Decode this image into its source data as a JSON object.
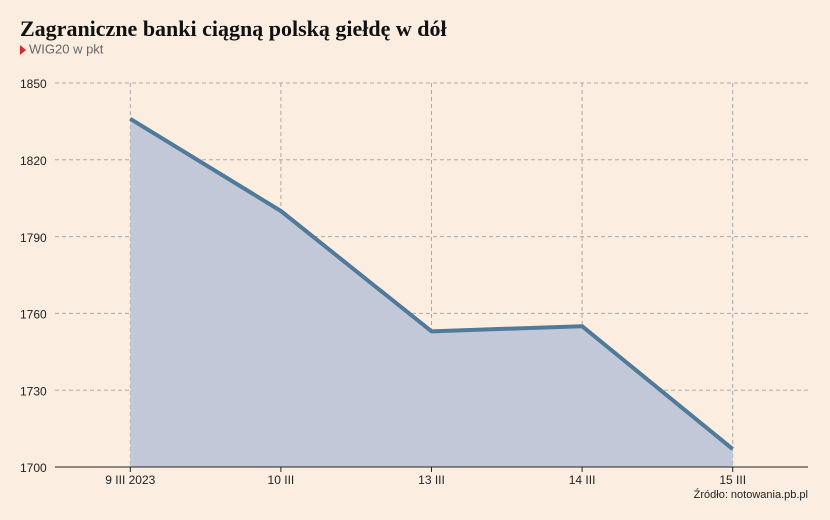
{
  "chart_data": {
    "type": "area",
    "title": "Zagraniczne banki ciągną polską giełdę w dół",
    "subtitle": "WIG20 w pkt",
    "source": "Źródło: notowania.pb.pl",
    "categories": [
      "9 III 2023",
      "10 III",
      "13 III",
      "14 III",
      "15 III"
    ],
    "values": [
      1836,
      1800,
      1753,
      1755,
      1707
    ],
    "color": "#4f7a9a",
    "fill_color": "#c2c8d7",
    "ylim": [
      1700,
      1850
    ],
    "yticks": [
      1700,
      1730,
      1760,
      1790,
      1820,
      1850
    ],
    "grid": true
  }
}
